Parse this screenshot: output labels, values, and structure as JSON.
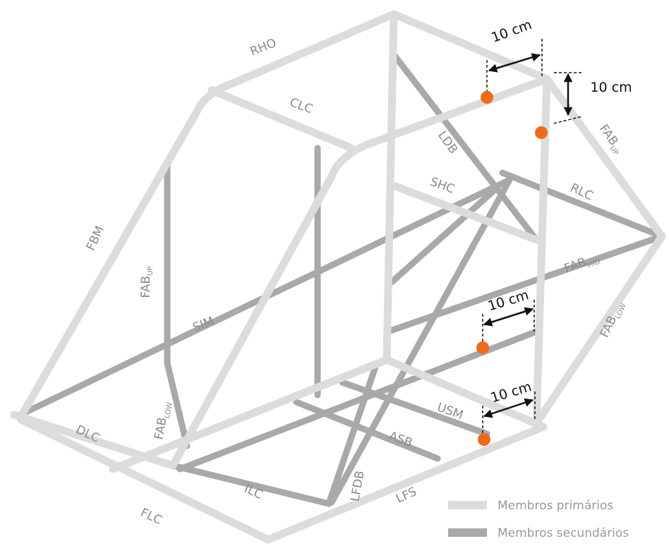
{
  "members": [
    {
      "name": "RHO"
    },
    {
      "name": "CLC"
    },
    {
      "name": "LDB"
    },
    {
      "name": "SHC"
    },
    {
      "name": "RLC"
    },
    {
      "name": "FAB",
      "sub": "UP"
    },
    {
      "name": "FBM"
    },
    {
      "name": "FAB",
      "sub": "UP"
    },
    {
      "name": "SIM"
    },
    {
      "name": "FAB",
      "sub": "MID"
    },
    {
      "name": "FAB",
      "sub": "LOW"
    },
    {
      "name": "DLC"
    },
    {
      "name": "FAB",
      "sub": "LOW"
    },
    {
      "name": "USM"
    },
    {
      "name": "ASB"
    },
    {
      "name": "LFDB"
    },
    {
      "name": "ILC"
    },
    {
      "name": "LFS"
    },
    {
      "name": "FLC"
    }
  ],
  "dimensions": [
    "10 cm",
    "10 cm",
    "10 cm",
    "10 cm"
  ],
  "legend": [
    "Membros primários",
    "Membros secundários"
  ]
}
